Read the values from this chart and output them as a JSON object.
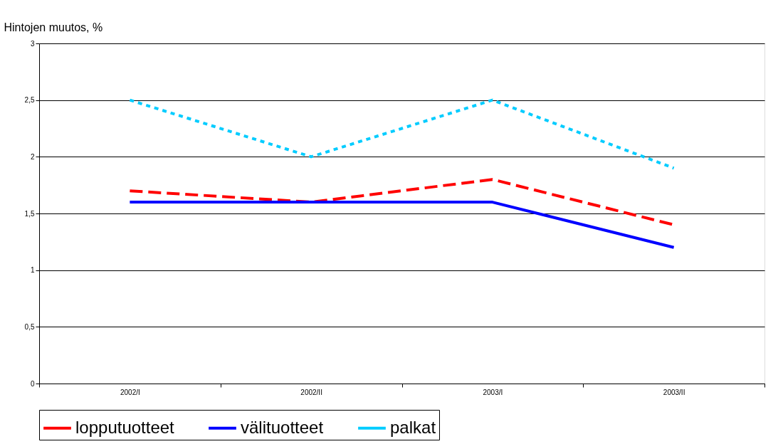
{
  "chart_data": {
    "type": "line",
    "ylabel": "Hintojen muutos, %",
    "categories": [
      "2002/I",
      "2002/II",
      "2003/I",
      "2003/II"
    ],
    "series": [
      {
        "name": "lopputuotteet",
        "color": "#ff0000",
        "line_style": "dashed",
        "values": [
          1.7,
          1.6,
          1.8,
          1.4
        ]
      },
      {
        "name": "välituotteet",
        "color": "#0000ff",
        "line_style": "solid",
        "values": [
          1.6,
          1.6,
          1.6,
          1.2
        ]
      },
      {
        "name": "palkat",
        "color": "#00ccff",
        "line_style": "dotted",
        "values": [
          2.5,
          2.0,
          2.5,
          1.9
        ]
      }
    ],
    "ylim": [
      0,
      3
    ],
    "yticks": [
      0,
      {
        "value": 0.5,
        "label": "0,5"
      },
      1,
      {
        "value": 1.5,
        "label": "1,5"
      },
      2,
      {
        "value": 2.5,
        "label": "2,5"
      },
      3
    ],
    "grid": "y",
    "legend": "bottom",
    "marker": "none"
  }
}
